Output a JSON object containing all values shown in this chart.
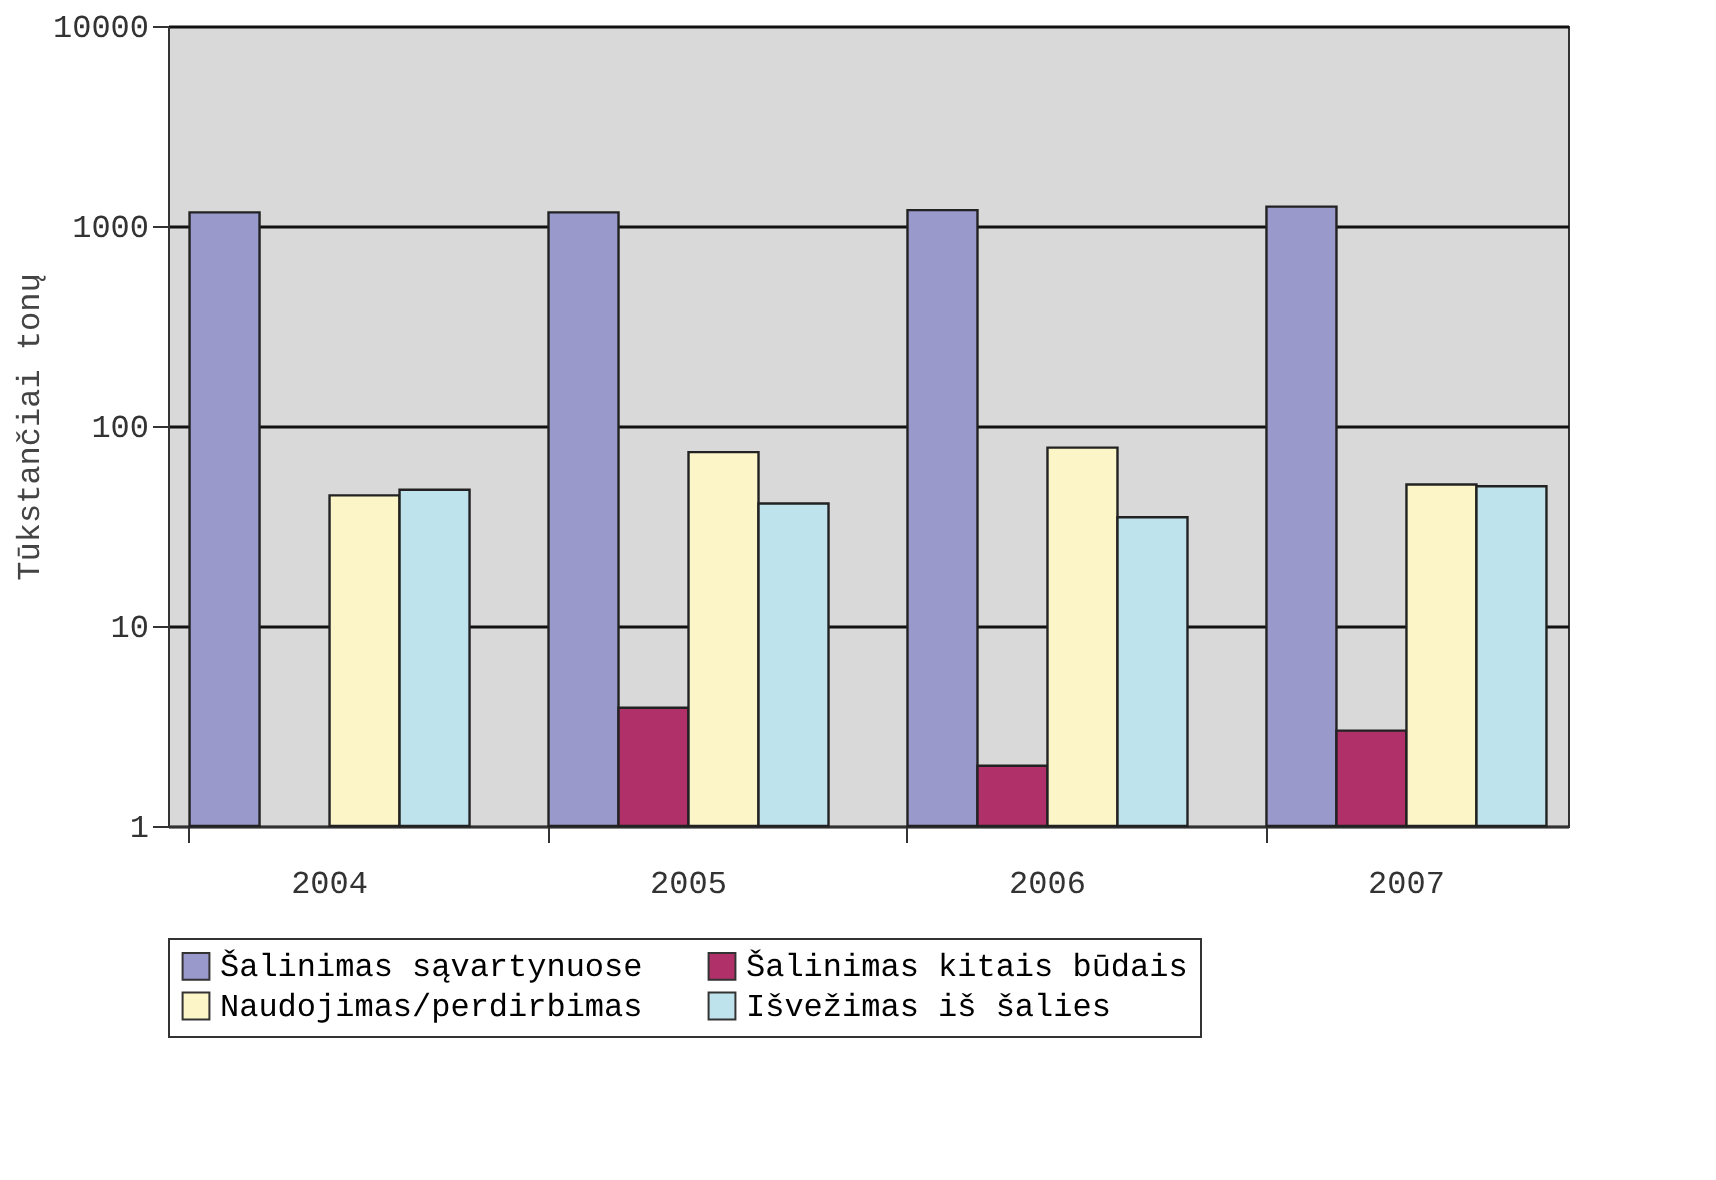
{
  "chart_data": {
    "type": "bar",
    "ylabel": "Tūkstančiai tonų",
    "categories": [
      "2004",
      "2005",
      "2006",
      "2007"
    ],
    "series": [
      {
        "name": "Šalinimas sąvartynuose",
        "color": "#9999cc",
        "values": [
          1170,
          1170,
          1200,
          1250
        ]
      },
      {
        "name": "Šalinimas kitais būdais",
        "color": "#b0306a",
        "values": [
          null,
          3.9,
          2.0,
          3.0
        ]
      },
      {
        "name": "Naudojimas/perdirbimas",
        "color": "#fbf5c8",
        "values": [
          45,
          74,
          78,
          51
        ]
      },
      {
        "name": "Išvežimas iš šalies",
        "color": "#bfe3ec",
        "values": [
          48,
          41,
          35,
          50
        ]
      }
    ],
    "log": true,
    "ylim": [
      1,
      10000
    ],
    "yticks": [
      1,
      10,
      100,
      1000,
      10000
    ],
    "grid": "y",
    "legend": "bottom"
  }
}
